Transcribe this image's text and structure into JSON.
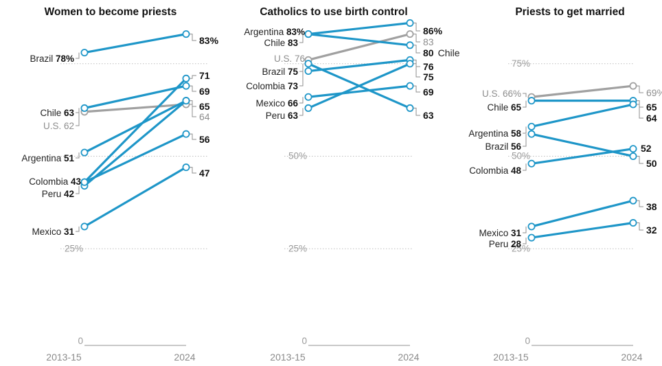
{
  "x_labels": [
    "2013-15",
    "2024"
  ],
  "colors": {
    "country": "#1e96c8",
    "us": "#a0a0a0"
  },
  "chart_data": [
    {
      "type": "line",
      "title": "Women to become priests",
      "x": [
        "2013-15",
        "2024"
      ],
      "ylim": [
        0,
        100
      ],
      "gridlines": [
        0,
        25,
        50,
        75
      ],
      "grid_labels": [
        "0",
        "25%",
        "",
        ""
      ],
      "series": [
        {
          "name": "Brazil",
          "values": [
            78,
            83
          ],
          "start_label": "78%",
          "end_label": "83%"
        },
        {
          "name": "Chile",
          "values": [
            63,
            69
          ],
          "start_label": "63",
          "end_label": "69"
        },
        {
          "name": "U.S.",
          "values": [
            62,
            64
          ],
          "start_label": "62",
          "end_label": "64",
          "us": true
        },
        {
          "name": "Argentina",
          "values": [
            51,
            65
          ],
          "start_label": "51",
          "end_label": "65"
        },
        {
          "name": "Colombia",
          "values": [
            43,
            71
          ],
          "start_label": "43",
          "end_label": "71"
        },
        {
          "name": "Peru",
          "values": [
            42,
            65
          ],
          "start_label": "42",
          "end_label": ""
        },
        {
          "name": "Mexico",
          "values": [
            31,
            47
          ],
          "start_label": "31",
          "end_label": "47"
        },
        {
          "name": "",
          "values": [
            43,
            56
          ],
          "start_label": "",
          "end_label": "56"
        }
      ]
    },
    {
      "type": "line",
      "title": "Catholics to use birth control",
      "x": [
        "2013-15",
        "2024"
      ],
      "ylim": [
        0,
        100
      ],
      "gridlines": [
        0,
        25,
        50,
        75
      ],
      "grid_labels": [
        "0",
        "25%",
        "50%",
        ""
      ],
      "series": [
        {
          "name": "Argentina",
          "values": [
            83,
            86
          ],
          "start_label": "83%",
          "end_label": "86%"
        },
        {
          "name": "Chile",
          "values": [
            83,
            80
          ],
          "start_label": "83",
          "end_label": "80",
          "end_name": "Chile"
        },
        {
          "name": "U.S.",
          "values": [
            76,
            83
          ],
          "start_label": "76",
          "end_label": "83",
          "us": true
        },
        {
          "name": "Brazil",
          "values": [
            75,
            63
          ],
          "start_label": "75",
          "end_label": "63"
        },
        {
          "name": "Colombia",
          "values": [
            73,
            76
          ],
          "start_label": "73",
          "end_label": "76"
        },
        {
          "name": "Mexico",
          "values": [
            66,
            69
          ],
          "start_label": "66",
          "end_label": "69"
        },
        {
          "name": "Peru",
          "values": [
            63,
            75
          ],
          "start_label": "63",
          "end_label": "75"
        }
      ]
    },
    {
      "type": "line",
      "title": "Priests to get married",
      "x": [
        "2013-15",
        "2024"
      ],
      "ylim": [
        0,
        100
      ],
      "gridlines": [
        0,
        25,
        50,
        75
      ],
      "grid_labels": [
        "0",
        "25%",
        "50%",
        "75%"
      ],
      "series": [
        {
          "name": "U.S.",
          "values": [
            66,
            69
          ],
          "start_label": "66%",
          "end_label": "69%",
          "us": true
        },
        {
          "name": "Chile",
          "values": [
            65,
            65
          ],
          "start_label": "65",
          "end_label": "65"
        },
        {
          "name": "Argentina",
          "values": [
            58,
            64
          ],
          "start_label": "58",
          "end_label": "64"
        },
        {
          "name": "Brazil",
          "values": [
            56,
            50
          ],
          "start_label": "56",
          "end_label": "50"
        },
        {
          "name": "Colombia",
          "values": [
            48,
            52
          ],
          "start_label": "48",
          "end_label": "52"
        },
        {
          "name": "Mexico",
          "values": [
            31,
            38
          ],
          "start_label": "31",
          "end_label": "38"
        },
        {
          "name": "Peru",
          "values": [
            28,
            32
          ],
          "start_label": "28",
          "end_label": "32"
        }
      ]
    }
  ]
}
